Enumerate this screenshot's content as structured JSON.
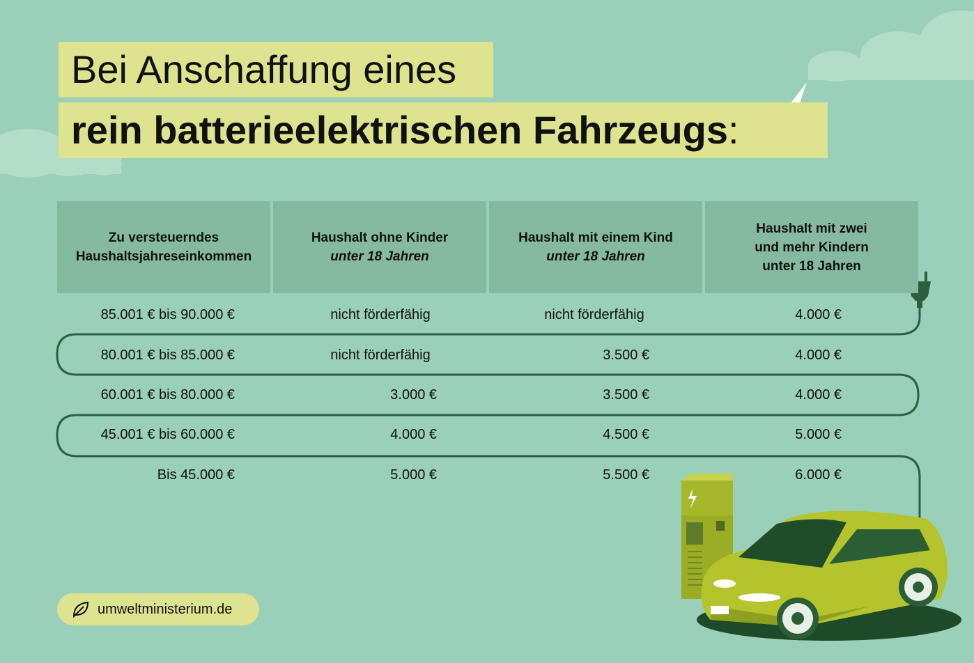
{
  "title": {
    "line1": "Bei Anschaffung eines",
    "line2": "rein batterieelektrischen Fahrzeugs",
    "line2_suffix": ":"
  },
  "table": {
    "headers": [
      {
        "line1": "Zu versteuerndes",
        "line2": "Haushaltsjahreseinkommen",
        "line3": ""
      },
      {
        "line1": "Haushalt ohne Kinder",
        "line2": "unter 18 Jahren",
        "line3": ""
      },
      {
        "line1": "Haushalt mit einem Kind",
        "line2": "unter 18 Jahren",
        "line3": ""
      },
      {
        "line1": "Haushalt mit zwei",
        "line2": "und mehr Kindern",
        "line3": "unter 18 Jahren"
      }
    ],
    "rows": [
      [
        "85.001 € bis 90.000 €",
        "nicht förderfähig",
        "nicht förderfähig",
        "4.000 €"
      ],
      [
        "80.001 € bis 85.000 €",
        "nicht förderfähig",
        "3.500 €",
        "4.000 €"
      ],
      [
        "60.001 € bis 80.000 €",
        "3.000 €",
        "3.500 €",
        "4.000 €"
      ],
      [
        "45.001 € bis 60.000 €",
        "4.000 €",
        "4.500 €",
        "5.000 €"
      ],
      [
        "Bis  45.000 €",
        "5.000 €",
        "5.500 €",
        "6.000 €"
      ]
    ]
  },
  "footer": {
    "label": "umweltministerium.de",
    "icon": "leaf-icon"
  },
  "colors": {
    "background": "#9acfb9",
    "header_cell": "#85b9a0",
    "highlight": "#dde38e",
    "cable": "#2d5e3e",
    "car": "#b5c42c"
  }
}
